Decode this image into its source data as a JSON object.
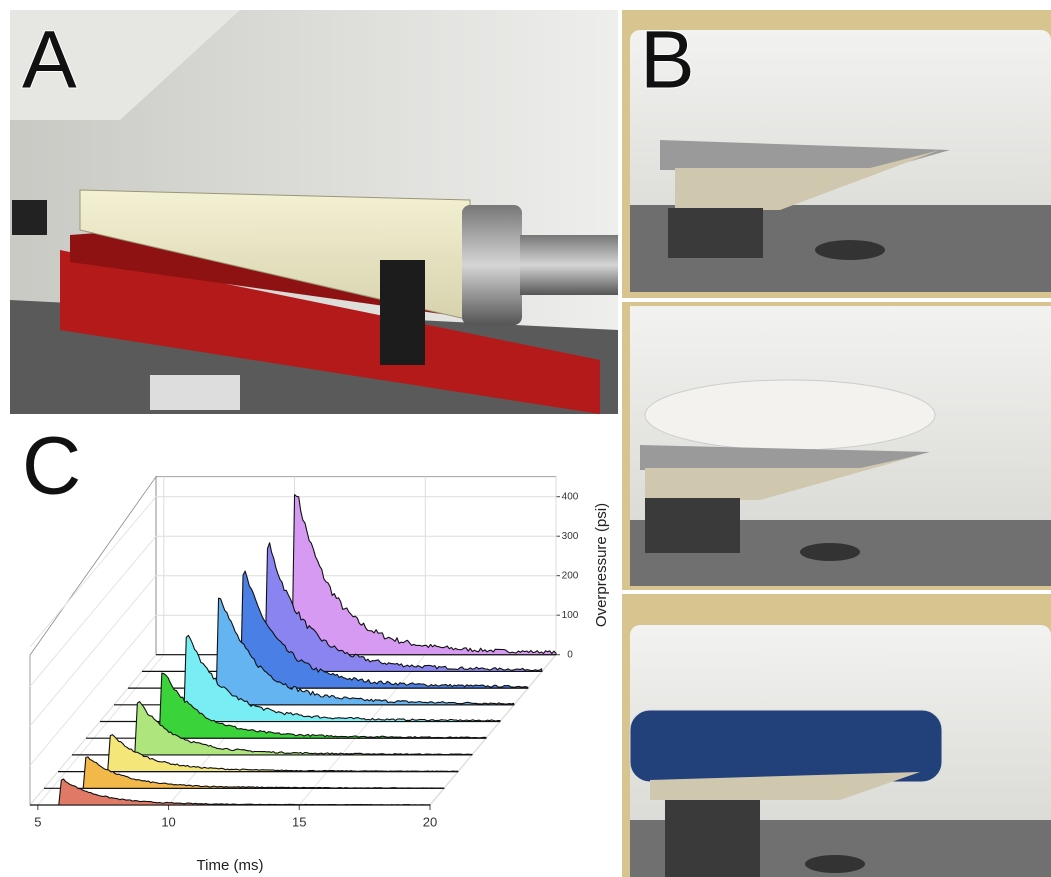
{
  "panel_labels": [
    "A",
    "B",
    "C"
  ],
  "chart_data": {
    "type": "waterfall",
    "xlabel": "Time (ms)",
    "ylabel": "Overpressure (psi)",
    "xlim": [
      4.7,
      20
    ],
    "xticks": [
      5,
      10,
      15,
      20
    ],
    "ylim": [
      0,
      400
    ],
    "yticks": [
      0,
      100,
      200,
      300,
      400
    ],
    "grid": true,
    "series": [
      {
        "color": "#e07a66",
        "x": [
          5.9
        ],
        "values": [
          63
        ]
      },
      {
        "color": "#f2b84a",
        "x": [
          6.3
        ],
        "values": [
          78
        ]
      },
      {
        "color": "#f4e678",
        "x": [
          6.7
        ],
        "values": [
          91
        ]
      },
      {
        "color": "#aee57c",
        "x": [
          7.2
        ],
        "values": [
          131
        ]
      },
      {
        "color": "#3ad43a",
        "x": [
          7.6
        ],
        "values": [
          165
        ]
      },
      {
        "color": "#78eef4",
        "x": [
          8.0
        ],
        "values": [
          213
        ]
      },
      {
        "color": "#64b4f2",
        "x": [
          8.7
        ],
        "values": [
          270
        ]
      },
      {
        "color": "#4a7fe6",
        "x": [
          9.1
        ],
        "values": [
          286
        ]
      },
      {
        "color": "#8a84f0",
        "x": [
          9.5
        ],
        "values": [
          311
        ]
      },
      {
        "color": "#d79af2",
        "x": [
          10.0
        ],
        "values": [
          405
        ]
      }
    ]
  }
}
